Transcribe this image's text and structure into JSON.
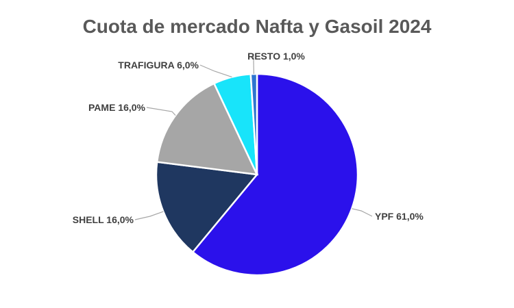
{
  "chart_data": {
    "type": "pie",
    "title": "Cuota de mercado Nafta y Gasoil 2024",
    "legend": "none",
    "slices": [
      {
        "name": "YPF",
        "value": 61.0,
        "label": "YPF 61,0%",
        "color": "#2b11eb"
      },
      {
        "name": "SHELL",
        "value": 16.0,
        "label": "SHELL 16,0%",
        "color": "#1f3760"
      },
      {
        "name": "PAME",
        "value": 16.0,
        "label": "PAME 16,0%",
        "color": "#a6a6a6"
      },
      {
        "name": "TRAFIGURA",
        "value": 6.0,
        "label": "TRAFIGURA 6,0%",
        "color": "#18e4fa"
      },
      {
        "name": "RESTO",
        "value": 1.0,
        "label": "RESTO 1,0%",
        "color": "#2e75d0"
      }
    ]
  }
}
